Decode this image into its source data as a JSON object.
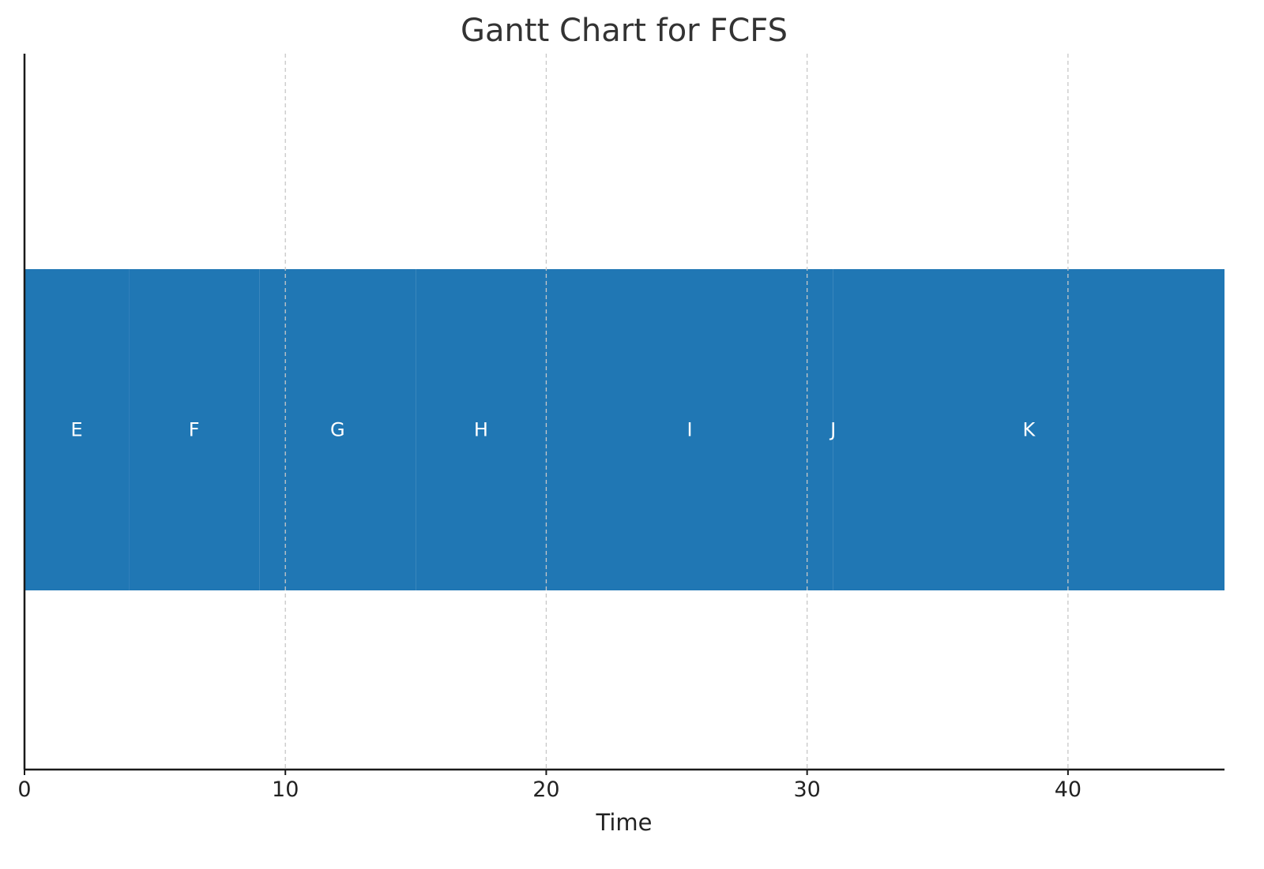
{
  "chart_data": {
    "type": "bar",
    "orientation": "horizontal",
    "subtype": "gantt",
    "title": "Gantt Chart for FCFS",
    "xlabel": "Time",
    "ylabel": "",
    "xlim": [
      0,
      46
    ],
    "xticks": [
      0,
      10,
      20,
      30,
      40
    ],
    "grid": "x-dashed",
    "bar_color": "#2077b4",
    "text_color": "#ffffff",
    "tasks": [
      {
        "label": "E",
        "start": 0,
        "end": 4
      },
      {
        "label": "F",
        "start": 4,
        "end": 9
      },
      {
        "label": "G",
        "start": 9,
        "end": 15
      },
      {
        "label": "H",
        "start": 15,
        "end": 20
      },
      {
        "label": "I",
        "start": 20,
        "end": 31
      },
      {
        "label": "J",
        "start": 31,
        "end": 31
      },
      {
        "label": "K",
        "start": 31,
        "end": 46
      }
    ]
  }
}
